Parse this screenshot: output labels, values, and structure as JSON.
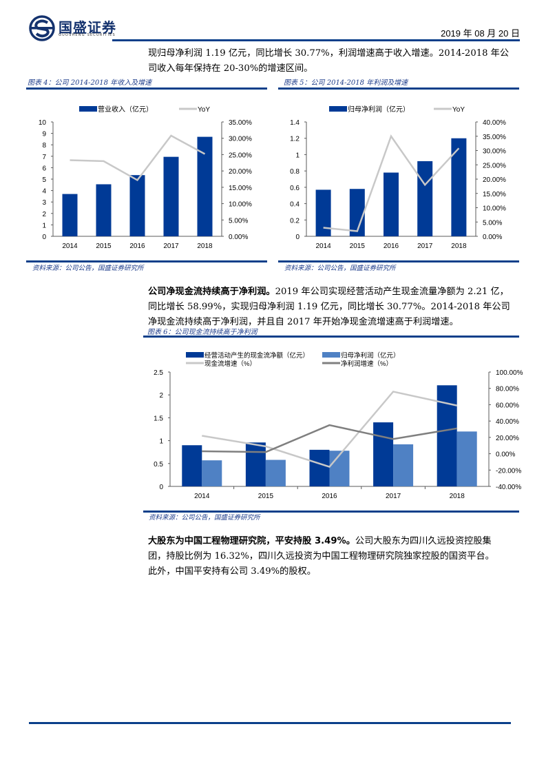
{
  "header": {
    "logo_cn": "国盛证券",
    "logo_en": "GUOSHENG SECURITIES",
    "date": "2019 年 08 月 20 日"
  },
  "intro": {
    "line1": "现归母净利润 1.19 亿元，同比增长 30.77%，利润增速高于收入增速。2014-2018 年公",
    "line2": "司收入每年保持在 20-30%的增速区间。"
  },
  "fig4": {
    "title": "图表 4：公司 2014-2018 年收入及增速",
    "source": "资料来源：公司公告，国盛证券研究所"
  },
  "fig5": {
    "title": "图表 5：公司 2014-2018 年利润及增速",
    "source": "资料来源：公司公告，国盛证券研究所"
  },
  "section2": {
    "bold": "公司净现金流持续高于净利润。",
    "line1_rest": "2019 年公司实现经营活动产生现金流量净额为 2.21 亿，",
    "line2": "同比增长 58.99%，实现归母净利润 1.19 亿元，同比增长 30.77%。2014-2018 年公司",
    "line3": "净现金流持续高于净利润，并且自 2017 年开始净现金流增速高于利润增速。"
  },
  "fig6": {
    "title": "图表 6：公司现金流持续高于净利润",
    "source": "资料来源：公司公告，国盛证券研究所"
  },
  "section3": {
    "bold": "大股东为中国工程物理研究院，平安持股 3.49%。",
    "line1_rest": "公司大股东为四川久远投资控股集",
    "line2": "团，持股比例为 16.32%，四川久远投资为中国工程物理研究院独家控股的国资平台。",
    "line3": "此外，中国平安持有公司 3.49%的股权。"
  },
  "colors": {
    "brand_blue": "#0a3f8a",
    "bar_dark": "#003a96",
    "bar_light": "#4f81c4",
    "line_light": "#c8c8c8",
    "line_dark": "#7f7f7f"
  },
  "chart_data": [
    {
      "id": "fig4",
      "type": "bar",
      "title": "公司 2014-2018 年收入及增速",
      "categories": [
        "2014",
        "2015",
        "2016",
        "2017",
        "2018"
      ],
      "series": [
        {
          "name": "营业收入（亿元）",
          "kind": "bar",
          "axis": "left",
          "values": [
            3.7,
            4.55,
            5.35,
            6.95,
            8.7
          ]
        },
        {
          "name": "YoY",
          "kind": "line",
          "axis": "right",
          "values": [
            23.3,
            23.0,
            17.2,
            30.8,
            25.2
          ]
        }
      ],
      "left_axis": {
        "min": 0,
        "max": 10,
        "ticks": [
          "0",
          "1",
          "2",
          "3",
          "4",
          "5",
          "6",
          "7",
          "8",
          "9",
          "10"
        ]
      },
      "right_axis": {
        "min": 0,
        "max": 35,
        "ticks": [
          "0.00%",
          "5.00%",
          "10.00%",
          "15.00%",
          "20.00%",
          "25.00%",
          "30.00%",
          "35.00%"
        ]
      },
      "legend_position": "top",
      "grid": false
    },
    {
      "id": "fig5",
      "type": "bar",
      "title": "公司 2014-2018 年利润及增速",
      "categories": [
        "2014",
        "2015",
        "2016",
        "2017",
        "2018"
      ],
      "series": [
        {
          "name": "归母净利润（亿元）",
          "kind": "bar",
          "axis": "left",
          "values": [
            0.57,
            0.58,
            0.78,
            0.92,
            1.2
          ]
        },
        {
          "name": "YoY",
          "kind": "line",
          "axis": "right",
          "values": [
            3.0,
            1.8,
            35.0,
            18.0,
            30.8
          ]
        }
      ],
      "left_axis": {
        "min": 0,
        "max": 1.4,
        "ticks": [
          "0",
          "0.2",
          "0.4",
          "0.6",
          "0.8",
          "1",
          "1.2",
          "1.4"
        ]
      },
      "right_axis": {
        "min": 0,
        "max": 40,
        "ticks": [
          "0.00%",
          "5.00%",
          "10.00%",
          "15.00%",
          "20.00%",
          "25.00%",
          "30.00%",
          "35.00%",
          "40.00%"
        ]
      },
      "legend_position": "top",
      "grid": false
    },
    {
      "id": "fig6",
      "type": "bar",
      "title": "公司现金流持续高于净利润",
      "categories": [
        "2014",
        "2015",
        "2016",
        "2017",
        "2018"
      ],
      "series": [
        {
          "name": "经营活动产生的现金流净额（亿元）",
          "kind": "bar",
          "axis": "left",
          "values": [
            0.9,
            0.96,
            0.8,
            1.4,
            2.21
          ]
        },
        {
          "name": "归母净利润（亿元）",
          "kind": "bar",
          "axis": "left",
          "values": [
            0.57,
            0.58,
            0.78,
            0.92,
            1.2
          ]
        },
        {
          "name": "现金流增速（%）",
          "kind": "line",
          "axis": "right",
          "values": [
            22,
            9,
            -16,
            76,
            59
          ]
        },
        {
          "name": "净利润增速（%）",
          "kind": "line",
          "axis": "right",
          "values": [
            3,
            2,
            35,
            18,
            31
          ]
        }
      ],
      "left_axis": {
        "min": 0,
        "max": 2.5,
        "ticks": [
          "0",
          "0.5",
          "1",
          "1.5",
          "2",
          "2.5"
        ]
      },
      "right_axis": {
        "min": -40,
        "max": 100,
        "ticks": [
          "-40.00%",
          "-20.00%",
          "0.00%",
          "20.00%",
          "40.00%",
          "60.00%",
          "80.00%",
          "100.00%"
        ]
      },
      "legend_position": "top",
      "grid": false
    }
  ]
}
